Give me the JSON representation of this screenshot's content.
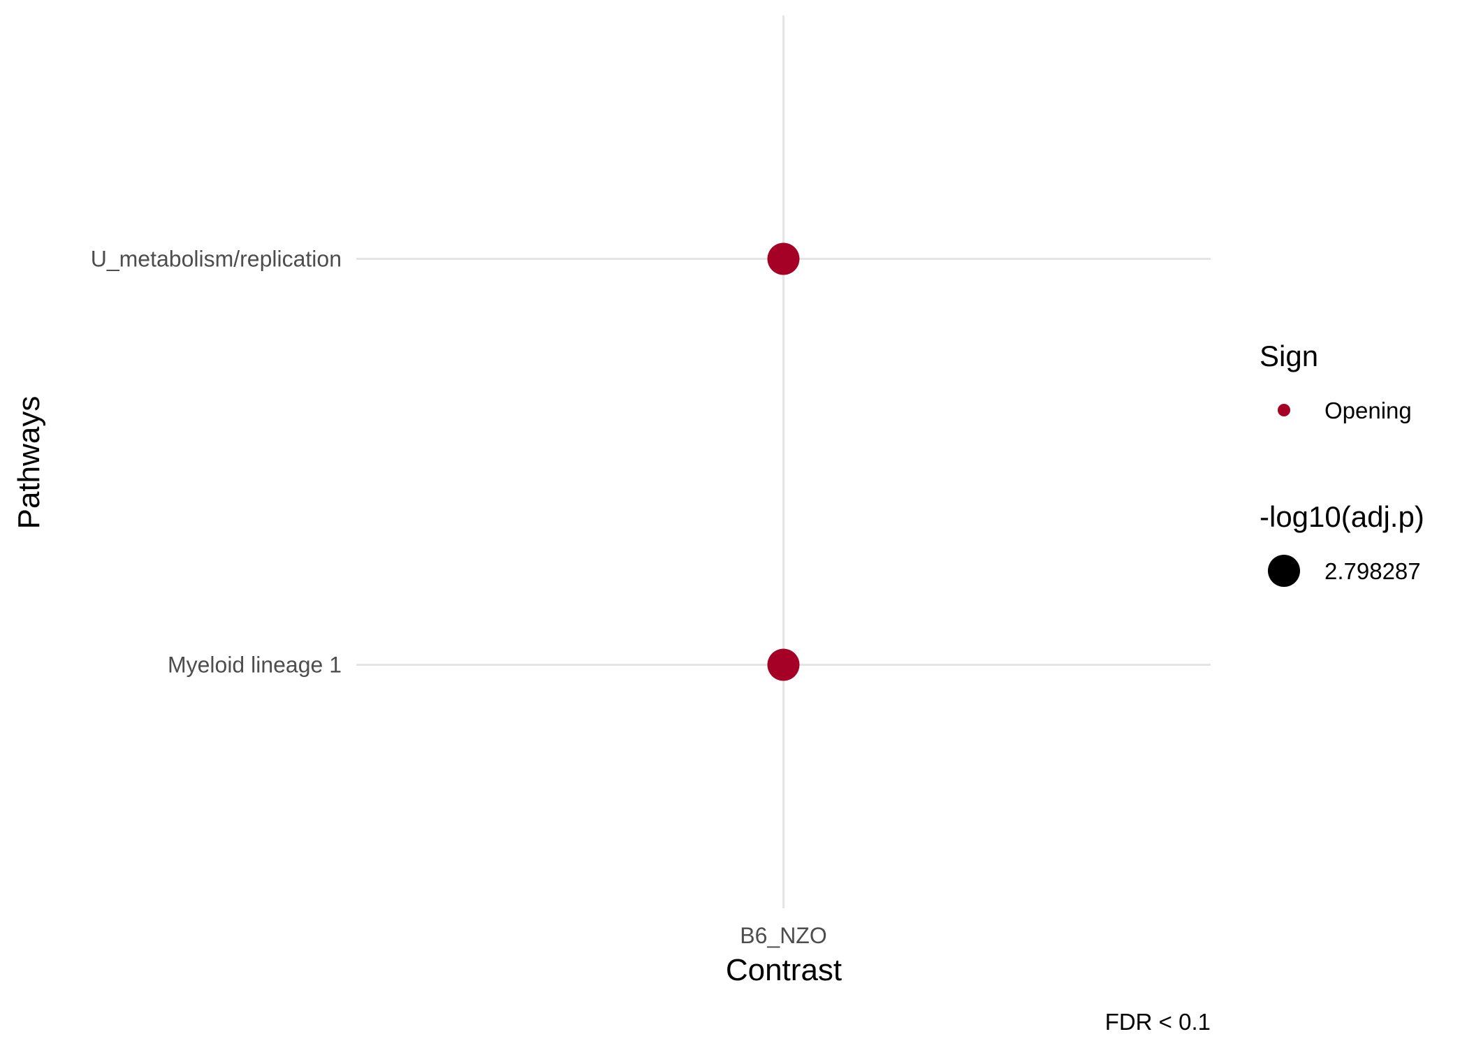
{
  "chart_data": {
    "type": "scatter",
    "x_categories": [
      "B6_NZO"
    ],
    "y_categories": [
      "Myeloid lineage 1",
      "U_metabolism/replication"
    ],
    "xlabel": "Contrast",
    "ylabel": "Pathways",
    "caption": "FDR < 0.1",
    "grid": true,
    "legend_position": "right",
    "points": [
      {
        "x": "B6_NZO",
        "y": "U_metabolism/replication",
        "sign": "Opening",
        "neg_log10_adj_p": 2.798287
      },
      {
        "x": "B6_NZO",
        "y": "Myeloid lineage 1",
        "sign": "Opening",
        "neg_log10_adj_p": 2.798287
      }
    ],
    "legend": {
      "color": {
        "title": "Sign",
        "entries": [
          {
            "label": "Opening",
            "color": "#a50026"
          }
        ]
      },
      "size": {
        "title": "-log10(adj.p)",
        "entries": [
          {
            "label": "2.798287",
            "value": 2.798287
          }
        ]
      }
    },
    "colors": {
      "Opening": "#a50026",
      "grid": "#e5e5e5",
      "size_key": "#000000"
    }
  }
}
